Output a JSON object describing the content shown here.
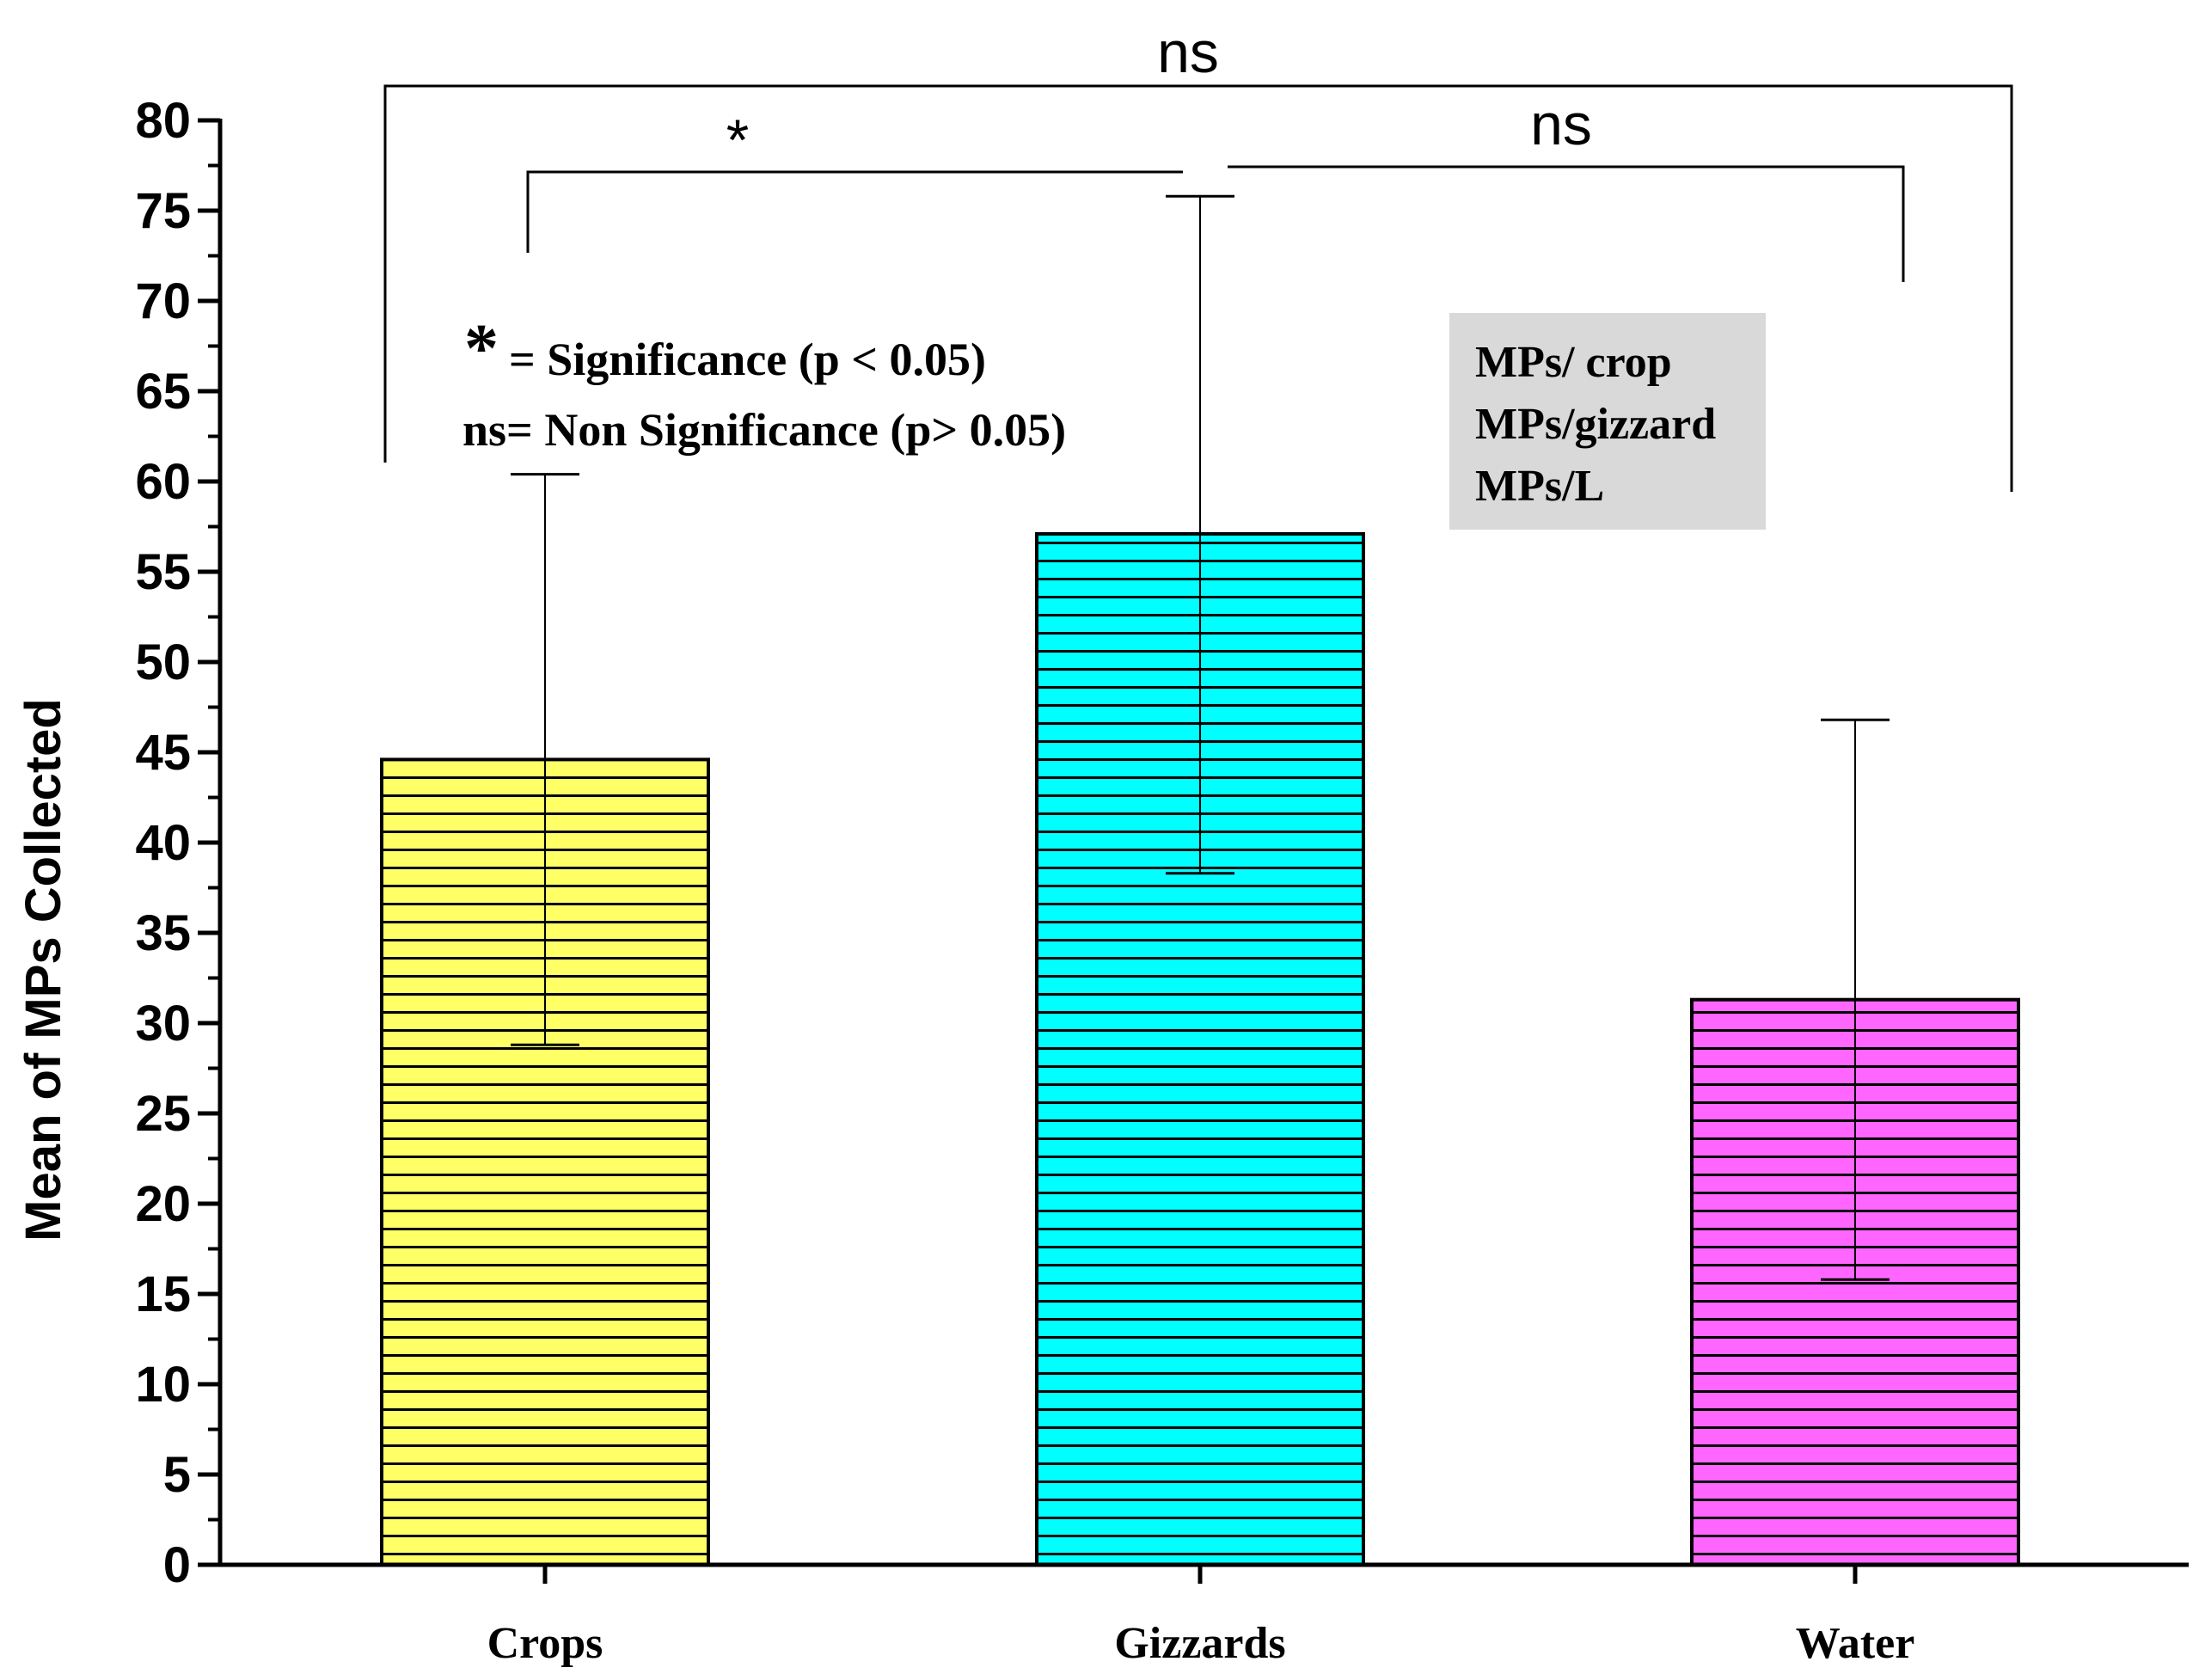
{
  "chart_data": {
    "type": "bar",
    "title": "",
    "xlabel": "",
    "ylabel": "Mean of MPs Collected",
    "ylim": [
      0,
      80
    ],
    "yticks": [
      "0",
      "5",
      "10",
      "15",
      "20",
      "25",
      "30",
      "35",
      "40",
      "45",
      "50",
      "55",
      "60",
      "65",
      "70",
      "75",
      "80"
    ],
    "categories": [
      "Crops",
      "Gizzards",
      "Water"
    ],
    "values": [
      44.6,
      57.1,
      31.3
    ],
    "error_low": [
      28.8,
      38.3,
      15.8
    ],
    "error_high": [
      60.4,
      75.8,
      46.8
    ],
    "colors": [
      "#ffff66",
      "#00ffff",
      "#ff66ff"
    ],
    "hatch": "horizontal-lines",
    "significance": [
      {
        "from": "Crops",
        "to": "Gizzards",
        "label": "*"
      },
      {
        "from": "Gizzards",
        "to": "Water",
        "label": "ns"
      },
      {
        "from": "Crops",
        "to": "Water",
        "label": "ns"
      }
    ],
    "notes": {
      "star_symbol": "*",
      "star_text": "=  Significance (p < 0.05)",
      "ns_text": "ns= Non Significance (p> 0.05)"
    },
    "legend_box": {
      "lines": [
        "MPs/ crop",
        "MPs/gizzard",
        "MPs/L"
      ],
      "background": "#d9d9d9"
    }
  }
}
